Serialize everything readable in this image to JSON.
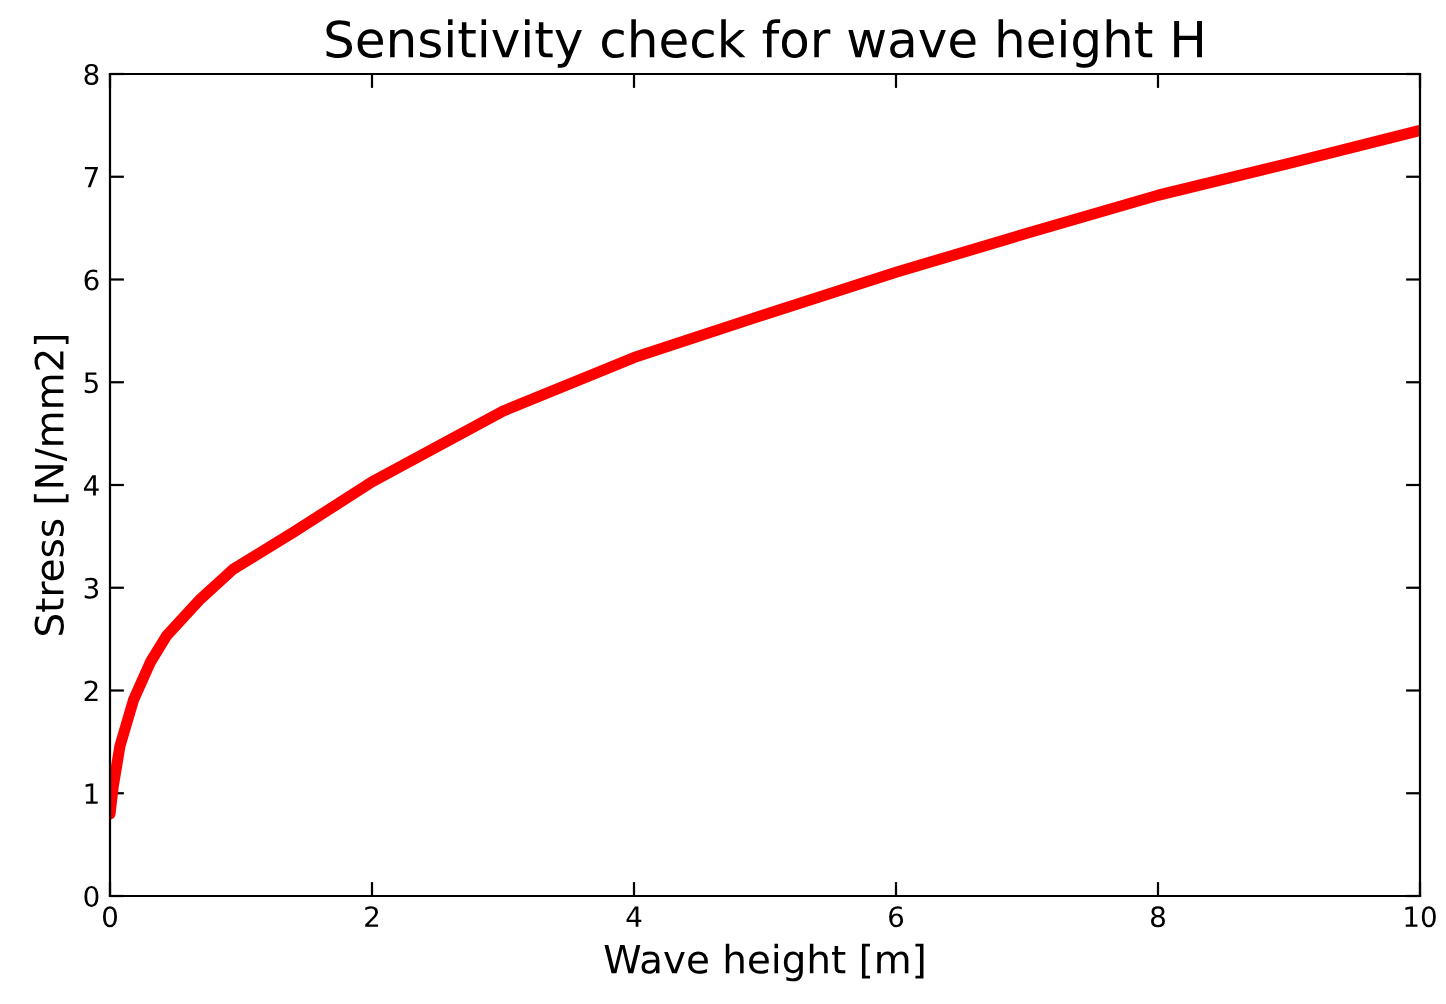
{
  "chart_data": {
    "type": "line",
    "title": "Sensitivity check for wave height H",
    "xlabel": "Wave height [m]",
    "ylabel": "Stress [N/mm2]",
    "series": [
      {
        "color": "#ff0000",
        "x": [
          0,
          0.025,
          0.076,
          0.18,
          0.31,
          0.43,
          0.69,
          0.94,
          1.4,
          2,
          3,
          4,
          5,
          6,
          7,
          8,
          9,
          10
        ],
        "values": [
          0.8,
          1.07,
          1.46,
          1.91,
          2.28,
          2.53,
          2.89,
          3.18,
          3.54,
          4.03,
          4.72,
          5.24,
          5.66,
          6.07,
          6.45,
          6.82,
          7.13,
          7.45
        ]
      }
    ],
    "xlim": [
      0,
      10
    ],
    "ylim": [
      0,
      8
    ],
    "xticks": [
      0,
      2,
      4,
      6,
      8,
      10
    ],
    "yticks": [
      0,
      1,
      2,
      3,
      4,
      5,
      6,
      7,
      8
    ],
    "grid": false,
    "legend": false
  }
}
